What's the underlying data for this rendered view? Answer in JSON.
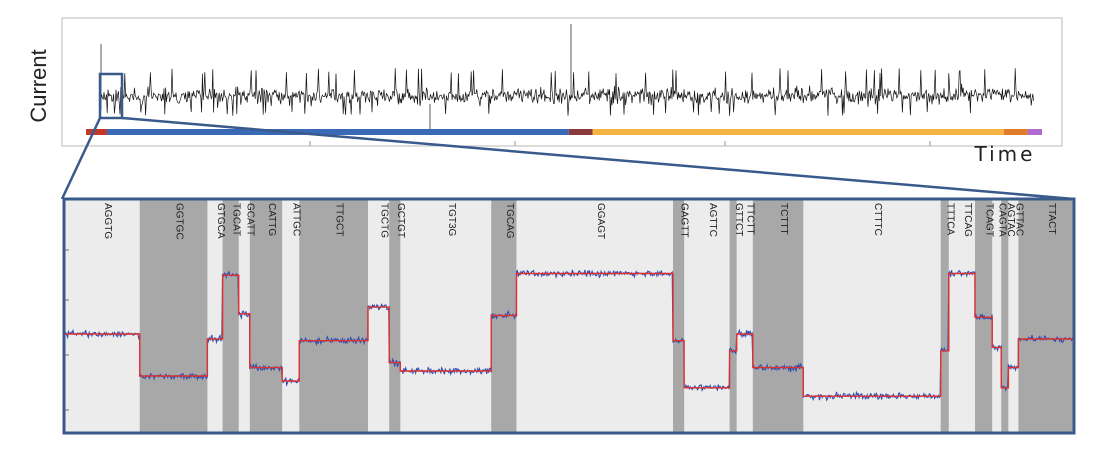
{
  "overview": {
    "ylabel": "Current",
    "xlabel": "Time",
    "progress_bar": [
      {
        "color": "#c0392b",
        "start": 0.0,
        "end": 0.022
      },
      {
        "color": "#3a6ab5",
        "start": 0.022,
        "end": 0.505
      },
      {
        "color": "#8b3a3a",
        "start": 0.505,
        "end": 0.53
      },
      {
        "color": "#f5b342",
        "start": 0.53,
        "end": 0.96
      },
      {
        "color": "#e07b2a",
        "start": 0.96,
        "end": 0.985
      },
      {
        "color": "#b06ad0",
        "start": 0.985,
        "end": 1.0
      }
    ]
  },
  "chart_data": {
    "type": "line",
    "title": "",
    "xlabel": "Time",
    "ylabel": "Current",
    "grid": false,
    "series": [
      {
        "color": "#2c4fb3",
        "values": []
      },
      {
        "color": "#e03030",
        "values": []
      }
    ],
    "segments": [
      {
        "label": "AGGTG",
        "shade": "light",
        "start": 0.0,
        "end": 0.075,
        "level": 0.5,
        "label_color": "#222222"
      },
      {
        "label": "GGTGC",
        "shade": "dark",
        "start": 0.075,
        "end": 0.142,
        "level": 0.25,
        "label_color": "#222222"
      },
      {
        "label": "GTGCA",
        "shade": "light",
        "start": 0.142,
        "end": 0.157,
        "level": 0.47,
        "label_color": "#222222"
      },
      {
        "label": "TGCAT",
        "shade": "dark",
        "start": 0.157,
        "end": 0.173,
        "level": 0.85,
        "label_color": "#222222"
      },
      {
        "label": "GCATT",
        "shade": "light",
        "start": 0.173,
        "end": 0.184,
        "level": 0.62,
        "label_color": "#222222"
      },
      {
        "label": "CATTG",
        "shade": "dark",
        "start": 0.184,
        "end": 0.216,
        "level": 0.3,
        "label_color": "#222222"
      },
      {
        "label": "ATTGC",
        "shade": "light",
        "start": 0.216,
        "end": 0.233,
        "level": 0.22,
        "label_color": "#222222"
      },
      {
        "label": "TTGCT",
        "shade": "dark",
        "start": 0.233,
        "end": 0.301,
        "level": 0.46,
        "label_color": "#222222"
      },
      {
        "label": "TGCTG",
        "shade": "light",
        "start": 0.301,
        "end": 0.322,
        "level": 0.66,
        "label_color": "#222222"
      },
      {
        "label": "GCTGT",
        "shade": "dark",
        "start": 0.322,
        "end": 0.333,
        "level": 0.33,
        "label_color": "#222222"
      },
      {
        "label": "TGT3G",
        "shade": "light",
        "start": 0.333,
        "end": 0.423,
        "level": 0.28,
        "label_color": "#e03030"
      },
      {
        "label": "TGCAG",
        "shade": "dark",
        "start": 0.423,
        "end": 0.448,
        "level": 0.61,
        "label_color": "#e03030"
      },
      {
        "label": "GGAGT",
        "shade": "light",
        "start": 0.448,
        "end": 0.603,
        "level": 0.86,
        "label_color": "#222222"
      },
      {
        "label": "GAGTT",
        "shade": "dark",
        "start": 0.603,
        "end": 0.614,
        "level": 0.46,
        "label_color": "#222222"
      },
      {
        "label": "AGTTC",
        "shade": "light",
        "start": 0.614,
        "end": 0.659,
        "level": 0.18,
        "label_color": "#222222"
      },
      {
        "label": "GTTCT",
        "shade": "dark",
        "start": 0.659,
        "end": 0.666,
        "level": 0.4,
        "label_color": "#222222"
      },
      {
        "label": "TTCTT",
        "shade": "light",
        "start": 0.666,
        "end": 0.682,
        "level": 0.5,
        "label_color": "#222222"
      },
      {
        "label": "TCTTT",
        "shade": "dark",
        "start": 0.682,
        "end": 0.732,
        "level": 0.3,
        "label_color": "#222222"
      },
      {
        "label": "CTTTC",
        "shade": "light",
        "start": 0.732,
        "end": 0.868,
        "level": 0.13,
        "label_color": "#222222"
      },
      {
        "label": "TTTCA",
        "shade": "dark",
        "start": 0.868,
        "end": 0.876,
        "level": 0.4,
        "label_color": "#222222"
      },
      {
        "label": "TTCAG",
        "shade": "light",
        "start": 0.876,
        "end": 0.902,
        "level": 0.86,
        "label_color": "#222222"
      },
      {
        "label": "TCAGT",
        "shade": "dark",
        "start": 0.902,
        "end": 0.919,
        "level": 0.6,
        "label_color": "#222222"
      },
      {
        "label": "CAGTA",
        "shade": "light",
        "start": 0.919,
        "end": 0.928,
        "level": 0.42,
        "label_color": "#222222"
      },
      {
        "label": "AGTAC",
        "shade": "dark",
        "start": 0.928,
        "end": 0.935,
        "level": 0.18,
        "label_color": "#222222"
      },
      {
        "label": "GTTAC",
        "shade": "light",
        "start": 0.935,
        "end": 0.945,
        "level": 0.3,
        "label_color": "#222222"
      },
      {
        "label": "TTACT",
        "shade": "dark",
        "start": 0.945,
        "end": 1.0,
        "level": 0.47,
        "label_color": "#222222"
      }
    ]
  },
  "colors": {
    "frame": "#3a5a8c",
    "light_band": "#ececec",
    "dark_band": "#a8a8a8",
    "trace": "#2c4fb3",
    "fit": "#e03030",
    "overview_trace": "#111111"
  }
}
